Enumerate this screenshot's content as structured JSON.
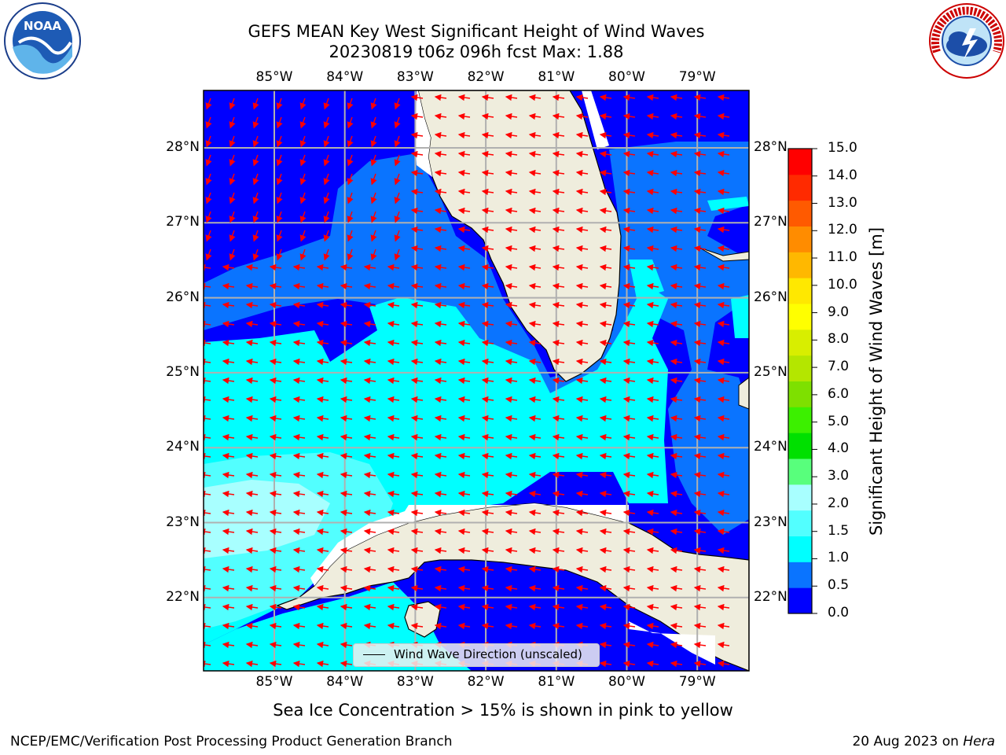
{
  "title_line1": "GEFS MEAN Key West Significant Height of Wind Waves",
  "title_line2": "20230819 t06z 096h fcst   Max: 1.88",
  "logos": {
    "left": "noaa-logo",
    "right": "national-weather-service-logo",
    "left_text": "NOAA",
    "right_text": "NATIONAL WEATHER SERVICE"
  },
  "map": {
    "lon_labels": [
      "85°W",
      "84°W",
      "83°W",
      "82°W",
      "81°W",
      "80°W",
      "79°W"
    ],
    "lat_labels": [
      "28°N",
      "27°N",
      "26°N",
      "25°N",
      "24°N",
      "23°N",
      "22°N"
    ],
    "lon_range": [
      -86.0,
      -78.3
    ],
    "lat_range": [
      21.0,
      28.8
    ],
    "gridlines": true,
    "arrow_color": "#ff0000",
    "land_color": "#efeddd",
    "legend_text": "Wind Wave Direction (unscaled)",
    "legend_position": "bottom-center"
  },
  "colorbar": {
    "label": "Significant Height of Wind Waves [m]",
    "ticks": [
      "15.0",
      "14.0",
      "13.0",
      "12.0",
      "11.0",
      "10.0",
      "9.0",
      "8.0",
      "7.0",
      "6.0",
      "5.0",
      "4.0",
      "3.0",
      "2.0",
      "1.5",
      "1.0",
      "0.5",
      "0.0"
    ],
    "colors": [
      "#0000ff",
      "#0a74ff",
      "#00ffff",
      "#52ffff",
      "#a8ffff",
      "#58ff7c",
      "#00e000",
      "#3cf000",
      "#7ee000",
      "#b4e600",
      "#d8ee00",
      "#ffff00",
      "#ffe800",
      "#ffb800",
      "#ff8c00",
      "#ff5a00",
      "#ff2a00",
      "#ff0000"
    ]
  },
  "ice_note": "Sea Ice Concentration > 15% is shown in pink to yellow",
  "footer": {
    "credit": "NCEP/EMC/Verification Post Processing Product Generation Branch",
    "date": "20 Aug 2023 on",
    "host": "Hera"
  }
}
